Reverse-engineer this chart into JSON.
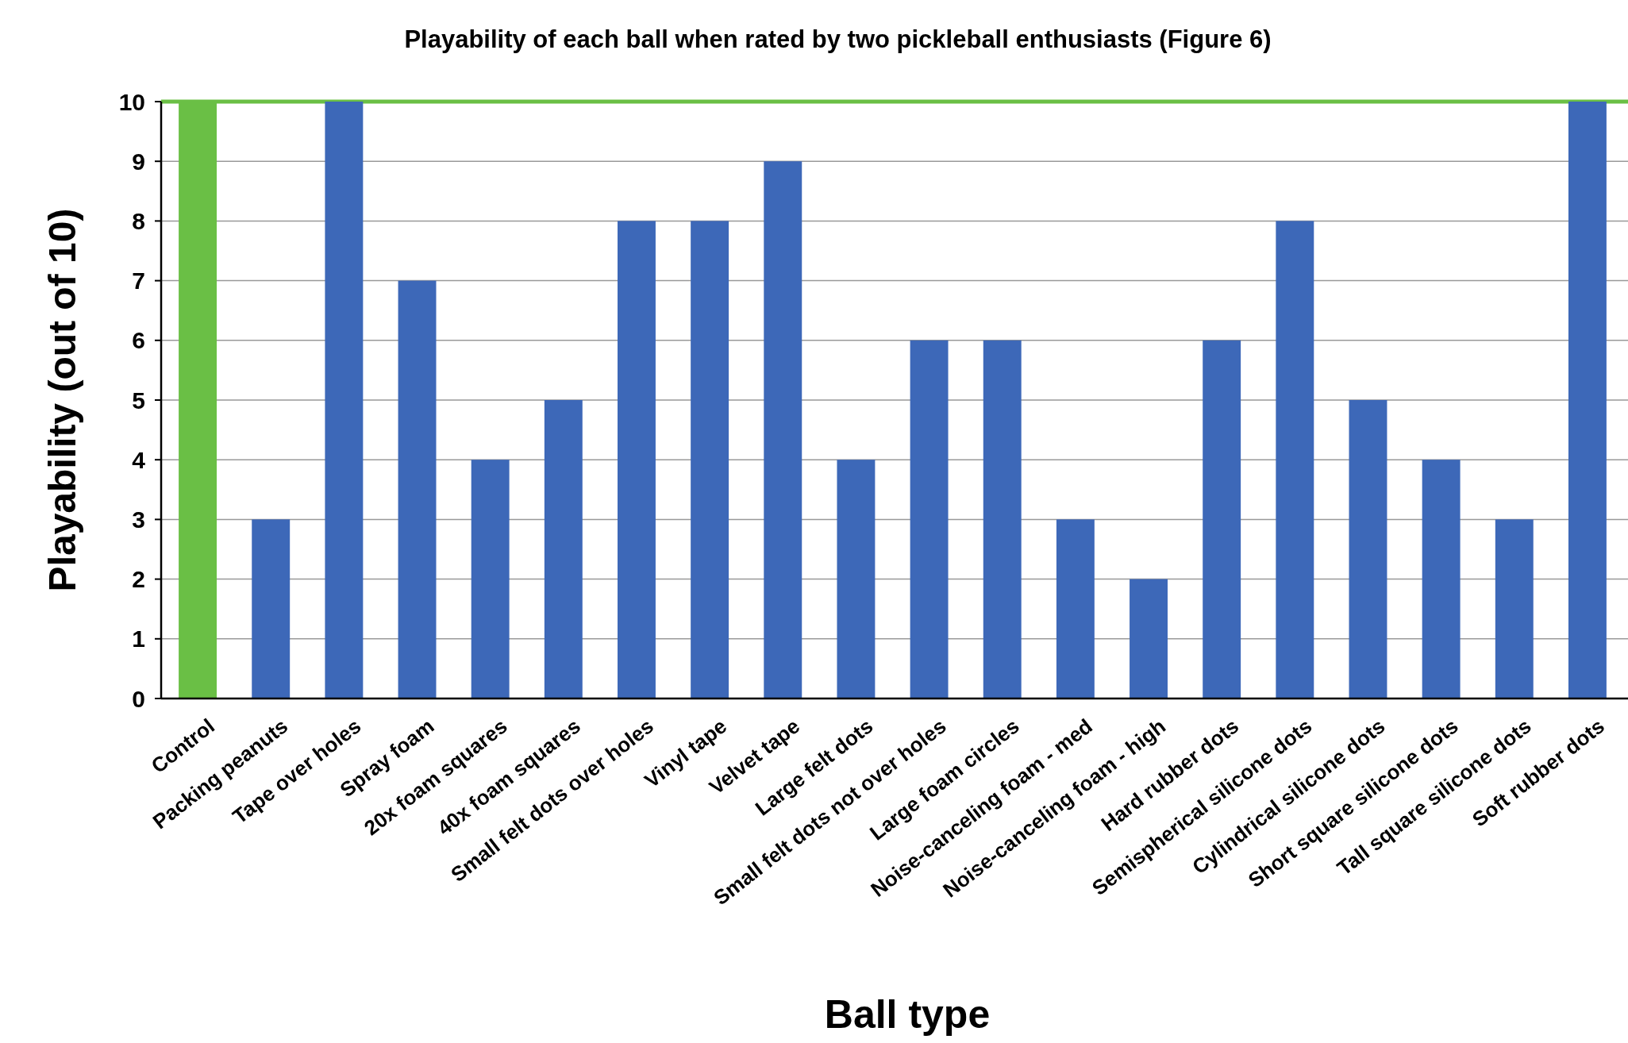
{
  "chart_data": {
    "type": "bar",
    "title": "Playability of each ball when rated by two pickleball enthusiasts (Figure 6)",
    "xlabel": "Ball type",
    "ylabel": "Playability (out of 10)",
    "categories": [
      "Control",
      "Packing peanuts",
      "Tape over holes",
      "Spray foam",
      "20x foam squares",
      "40x foam squares",
      "Small felt dots over holes",
      "Vinyl tape",
      "Velvet tape",
      "Large felt dots",
      "Small felt dots not over holes",
      "Large foam circles",
      "Noise-canceling foam - med",
      "Noise-canceling foam - high",
      "Hard rubber dots",
      "Semispherical silicone dots",
      "Cylindrical silicone dots",
      "Short square silicone dots",
      "Tall square silicone dots",
      "Soft rubber dots"
    ],
    "values": [
      10,
      3,
      10,
      7,
      4,
      5,
      8,
      8,
      9,
      4,
      6,
      6,
      3,
      2,
      6,
      8,
      5,
      4,
      3,
      10
    ],
    "colors": [
      "#6abf45",
      "#3d68b8",
      "#3d68b8",
      "#3d68b8",
      "#3d68b8",
      "#3d68b8",
      "#3d68b8",
      "#3d68b8",
      "#3d68b8",
      "#3d68b8",
      "#3d68b8",
      "#3d68b8",
      "#3d68b8",
      "#3d68b8",
      "#3d68b8",
      "#3d68b8",
      "#3d68b8",
      "#3d68b8",
      "#3d68b8",
      "#3d68b8"
    ],
    "ylim": [
      0,
      10
    ],
    "yticks": [
      0,
      1,
      2,
      3,
      4,
      5,
      6,
      7,
      8,
      9,
      10
    ],
    "grid": "y",
    "ref_lines": [
      {
        "axis": "y",
        "value": 10,
        "color": "#6abf45"
      }
    ]
  }
}
